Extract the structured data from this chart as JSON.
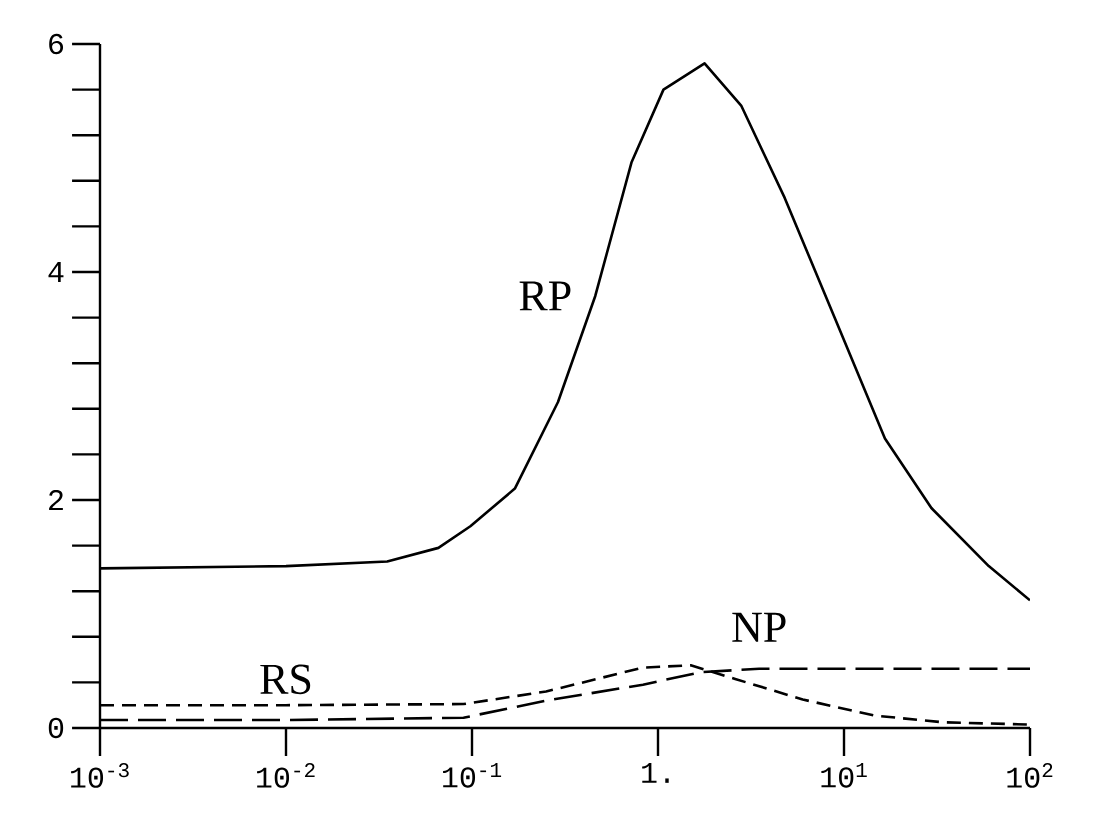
{
  "chart_data": {
    "type": "line",
    "log": "x",
    "xlim": [
      0.001,
      100
    ],
    "ylim": [
      0,
      6
    ],
    "xticks": [
      {
        "value": 0.001,
        "label": "10$^{-3}$"
      },
      {
        "value": 0.01,
        "label": "10$^{-2}$"
      },
      {
        "value": 0.1,
        "label": "10$^{-1}$"
      },
      {
        "value": 1,
        "label": "1."
      },
      {
        "value": 10,
        "label": "10$^{1}$"
      },
      {
        "value": 100,
        "label": "10$^{2}$"
      }
    ],
    "yticks": [
      0,
      {
        "value": 0.4,
        "label": null
      },
      {
        "value": 0.8,
        "label": null
      },
      {
        "value": 1.2,
        "label": null
      },
      {
        "value": 1.6,
        "label": null
      },
      2,
      {
        "value": 2.4,
        "label": null
      },
      {
        "value": 2.8,
        "label": null
      },
      {
        "value": 3.2,
        "label": null
      },
      {
        "value": 3.6,
        "label": null
      },
      4,
      {
        "value": 4.4,
        "label": null
      },
      {
        "value": 4.8,
        "label": null
      },
      {
        "value": 5.2,
        "label": null
      },
      {
        "value": 5.6,
        "label": null
      },
      6
    ],
    "marker": "none",
    "series": [
      {
        "name": "RP",
        "color": "#000000",
        "line_style": "solid",
        "x": [
          0.001,
          0.01,
          0.035,
          0.066,
          0.098,
          0.17,
          0.29,
          0.46,
          0.72,
          1.07,
          1.78,
          2.8,
          4.8,
          8.9,
          16.6,
          29.5,
          60,
          100
        ],
        "values": [
          1.4,
          1.42,
          1.46,
          1.58,
          1.77,
          2.1,
          2.86,
          3.79,
          4.96,
          5.6,
          5.83,
          5.46,
          4.65,
          3.6,
          2.54,
          1.93,
          1.42,
          1.12
        ]
      },
      {
        "name": "RS",
        "color": "#000000",
        "line_style": "dashed",
        "x": [
          0.001,
          0.01,
          0.09,
          0.25,
          0.83,
          1.5,
          2.6,
          6,
          14.5,
          34,
          100
        ],
        "values": [
          0.2,
          0.2,
          0.21,
          0.32,
          0.53,
          0.55,
          0.43,
          0.25,
          0.11,
          0.05,
          0.03
        ]
      },
      {
        "name": "NP",
        "color": "#000000",
        "line_style": "dashed",
        "x": [
          0.001,
          0.01,
          0.09,
          0.25,
          0.83,
          1.7,
          3.5,
          100
        ],
        "values": [
          0.07,
          0.07,
          0.09,
          0.24,
          0.38,
          0.49,
          0.52,
          0.52
        ]
      }
    ]
  }
}
